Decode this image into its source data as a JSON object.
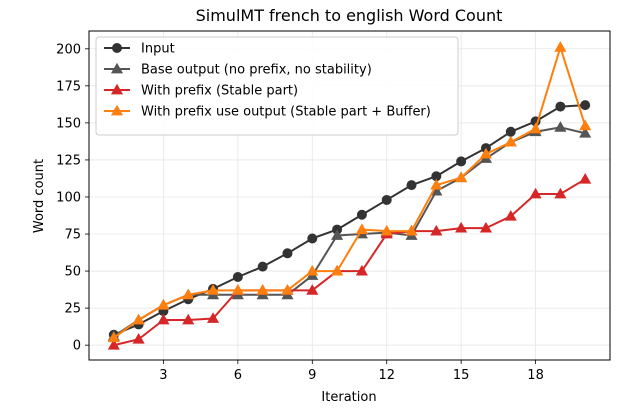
{
  "chart_data": {
    "type": "line",
    "title": "SimulMT french to english Word Count",
    "xlabel": "Iteration",
    "ylabel": "Word count",
    "xlim": [
      0,
      21
    ],
    "ylim": [
      -10,
      212
    ],
    "xticks": [
      3,
      6,
      9,
      12,
      15,
      18
    ],
    "yticks": [
      0,
      25,
      50,
      75,
      100,
      125,
      150,
      175,
      200
    ],
    "grid": true,
    "legend_position": "upper-left",
    "x": [
      1,
      2,
      3,
      4,
      5,
      6,
      7,
      8,
      9,
      10,
      11,
      12,
      13,
      14,
      15,
      16,
      17,
      18,
      19,
      20
    ],
    "series": [
      {
        "name": "Input",
        "color": "#333333",
        "marker": "circle",
        "values": [
          7,
          14,
          23,
          31,
          38,
          46,
          53,
          62,
          72,
          78,
          88,
          98,
          108,
          114,
          124,
          133,
          144,
          151,
          161,
          162
        ]
      },
      {
        "name": "Base output (no prefix, no stability)",
        "color": "#555555",
        "marker": "triangle",
        "values": [
          6,
          17,
          27,
          34,
          34,
          34,
          34,
          34,
          47,
          74,
          75,
          76,
          74,
          104,
          113,
          126,
          137,
          144,
          147,
          143
        ]
      },
      {
        "name": "With prefix (Stable part)",
        "color": "#d62728",
        "marker": "triangle",
        "values": [
          0,
          4,
          17,
          17,
          18,
          37,
          37,
          37,
          37,
          50,
          50,
          75,
          77,
          77,
          79,
          79,
          87,
          102,
          102,
          112
        ]
      },
      {
        "name": "With prefix use output (Stable part + Buffer)",
        "color": "#ff7f0e",
        "marker": "triangle",
        "values": [
          5,
          17,
          27,
          34,
          37,
          37,
          37,
          37,
          50,
          50,
          78,
          77,
          77,
          108,
          113,
          129,
          137,
          146,
          201,
          148
        ]
      }
    ]
  }
}
